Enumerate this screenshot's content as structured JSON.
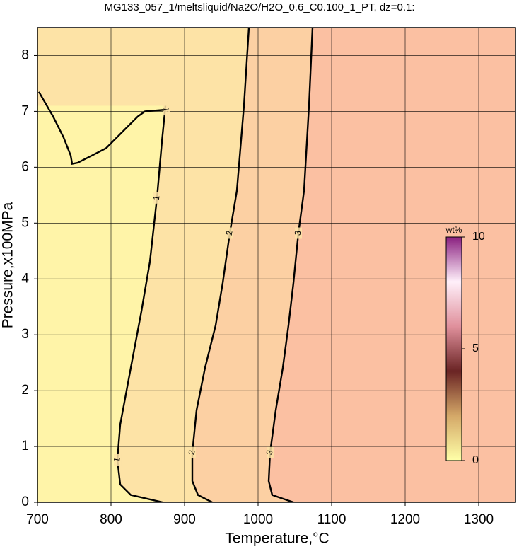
{
  "chart_data": {
    "type": "contour",
    "title": "MG133_057_1/meltsliquid/Na2O/H2O_0.6_C0.100_1_PT, dz=0.1:",
    "x_label": "Temperature,°C",
    "y_label": "Pressure,x100MPa",
    "xlim": [
      700,
      1350
    ],
    "ylim": [
      0,
      8.5
    ],
    "xticks": [
      700,
      800,
      900,
      1000,
      1100,
      1200,
      1300
    ],
    "yticks": [
      0,
      1,
      2,
      3,
      4,
      5,
      6,
      7,
      8
    ],
    "grid": true,
    "fill_colors": [
      "#fff4a8",
      "#fde3a6",
      "#fcd0a3",
      "#fbc0a2"
    ],
    "contour_color": "#000000",
    "contours": [
      {
        "level": 1,
        "x": [
          870.2,
          826.9,
          812.5,
          808.7,
          812.5,
          826.9,
          841.3,
          852.9,
          862.5,
          869.2,
          873.1,
          874.0
        ],
        "y": [
          0,
          0.13,
          0.32,
          0.76,
          1.39,
          2.41,
          3.42,
          4.31,
          5.45,
          6.46,
          6.97,
          7.1
        ]
      },
      {
        "level": 2,
        "x": [
          937.5,
          918.3,
          910.6,
          910.6,
          916.3,
          927.9,
          942.3,
          951.9,
          961.5,
          971.2,
          980.8,
          987.5
        ],
        "y": [
          0,
          0.13,
          0.38,
          0.89,
          1.65,
          2.41,
          3.17,
          3.93,
          4.82,
          5.58,
          7.1,
          8.5
        ]
      },
      {
        "level": 3,
        "x": [
          1048.1,
          1019.2,
          1014.4,
          1016.3,
          1024.0,
          1033.7,
          1041.3,
          1048.1,
          1054.8,
          1062.5,
          1069.2,
          1074.0
        ],
        "y": [
          0,
          0.13,
          0.38,
          0.89,
          1.65,
          2.41,
          3.17,
          3.93,
          4.82,
          5.58,
          7.1,
          8.5
        ]
      },
      {
        "level": 1,
        "x": [
          701.9,
          721.2,
          735.6,
          745.2,
          747.1,
          754.8,
          774.0,
          793.3,
          807.7,
          822.1,
          836.5,
          846.2,
          875.0
        ],
        "y": [
          7.35,
          6.91,
          6.53,
          6.21,
          6.06,
          6.08,
          6.21,
          6.34,
          6.53,
          6.72,
          6.91,
          7.0,
          7.03
        ]
      }
    ],
    "colorbar": {
      "label": "wt%",
      "lim": [
        0,
        10
      ],
      "ticks": [
        0,
        5,
        10
      ],
      "colors": [
        "#ffffa8",
        "#d4a868",
        "#6a2424",
        "#e0909c",
        "#fff0fa",
        "#8a2080"
      ]
    }
  }
}
